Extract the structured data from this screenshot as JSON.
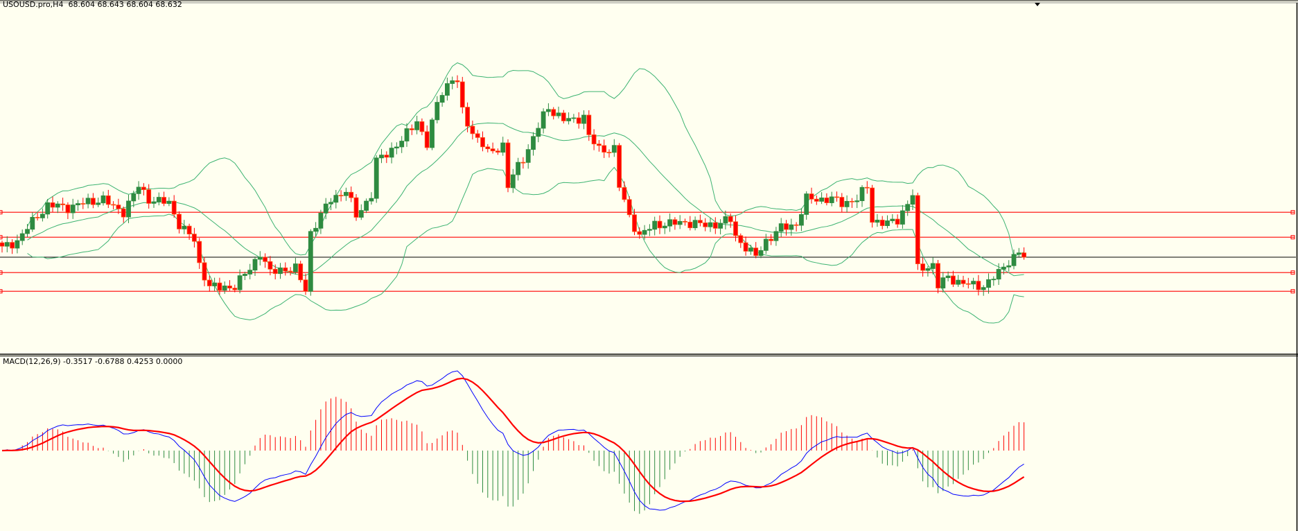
{
  "header": {
    "symbol": "USOUSD.pro,H4",
    "ohlc": "68.604 68.643 68.604 68.632"
  },
  "macd_panel": {
    "label": "MACD(12,26,9) -0.3517 -0.6788 0.4253 0.0000"
  },
  "colors": {
    "background": "#fffff0",
    "bull": "#2e8b40",
    "bear": "#ff0000",
    "bollinger": "#3cb371",
    "level": "#ff0000",
    "current": "#000000",
    "macd_line": "#0000ff",
    "signal_line": "#ff0000",
    "hist_pos": "#ff0000",
    "hist_neg": "#2e8b40"
  },
  "chart_data": {
    "type": "candlestick",
    "bars": 203,
    "last_close": 68.632,
    "close_path": [
      [
        0,
        68.76
      ],
      [
        3,
        68.87
      ],
      [
        7,
        69.23
      ],
      [
        9,
        69.38
      ],
      [
        13,
        69.35
      ],
      [
        16,
        69.41
      ],
      [
        20,
        69.47
      ],
      [
        22,
        69.35
      ],
      [
        24,
        69.29
      ],
      [
        27,
        69.65
      ],
      [
        29,
        69.47
      ],
      [
        33,
        69.41
      ],
      [
        35,
        69.11
      ],
      [
        38,
        68.87
      ],
      [
        39,
        68.52
      ],
      [
        41,
        68.22
      ],
      [
        43,
        68.18
      ],
      [
        46,
        68.22
      ],
      [
        49,
        68.46
      ],
      [
        51,
        68.7
      ],
      [
        53,
        68.4
      ],
      [
        55,
        68.46
      ],
      [
        58,
        68.46
      ],
      [
        60,
        68.16
      ],
      [
        61,
        68.99
      ],
      [
        63,
        69.23
      ],
      [
        65,
        69.47
      ],
      [
        68,
        69.59
      ],
      [
        70,
        69.23
      ],
      [
        73,
        69.53
      ],
      [
        74,
        70.01
      ],
      [
        77,
        70.19
      ],
      [
        79,
        70.31
      ],
      [
        82,
        70.61
      ],
      [
        84,
        70.25
      ],
      [
        86,
        70.85
      ],
      [
        87,
        71.03
      ],
      [
        89,
        71.2
      ],
      [
        90,
        71.15
      ],
      [
        91,
        70.73
      ],
      [
        93,
        70.43
      ],
      [
        95,
        70.25
      ],
      [
        96,
        70.13
      ],
      [
        99,
        70.25
      ],
      [
        100,
        69.65
      ],
      [
        102,
        69.95
      ],
      [
        104,
        70.19
      ],
      [
        107,
        70.67
      ],
      [
        108,
        70.79
      ],
      [
        111,
        70.61
      ],
      [
        113,
        70.61
      ],
      [
        115,
        70.67
      ],
      [
        116,
        70.37
      ],
      [
        118,
        70.19
      ],
      [
        121,
        70.19
      ],
      [
        122,
        69.65
      ],
      [
        124,
        69.23
      ],
      [
        126,
        68.93
      ],
      [
        129,
        69.11
      ],
      [
        132,
        69.11
      ],
      [
        135,
        69.14
      ],
      [
        139,
        69.09
      ],
      [
        141,
        69.11
      ],
      [
        144,
        69.17
      ],
      [
        145,
        68.93
      ],
      [
        148,
        68.7
      ],
      [
        149,
        68.64
      ],
      [
        151,
        68.87
      ],
      [
        154,
        69.05
      ],
      [
        157,
        69.11
      ],
      [
        159,
        69.47
      ],
      [
        161,
        69.47
      ],
      [
        164,
        69.47
      ],
      [
        166,
        69.41
      ],
      [
        169,
        69.47
      ],
      [
        171,
        69.65
      ],
      [
        172,
        69.17
      ],
      [
        175,
        69.11
      ],
      [
        177,
        69.17
      ],
      [
        179,
        69.41
      ],
      [
        180,
        69.53
      ],
      [
        181,
        68.46
      ],
      [
        184,
        68.52
      ],
      [
        185,
        68.22
      ],
      [
        187,
        68.34
      ],
      [
        189,
        68.28
      ],
      [
        192,
        68.22
      ],
      [
        194,
        68.22
      ],
      [
        197,
        68.4
      ],
      [
        199,
        68.58
      ],
      [
        201,
        68.7
      ],
      [
        202,
        68.632
      ]
    ],
    "levels": [
      69.28,
      68.92,
      68.41,
      68.14
    ],
    "indicators": {
      "bollinger": {
        "period": 20,
        "deviation": 2
      },
      "macd": {
        "fast": 12,
        "slow": 26,
        "signal": 9
      }
    }
  }
}
